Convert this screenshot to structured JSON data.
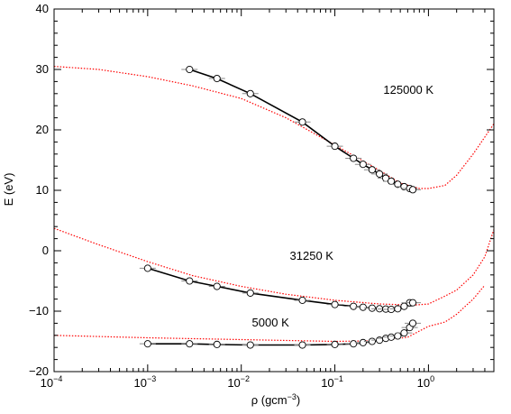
{
  "chart_data": {
    "type": "scatter",
    "xlabel": "ρ (gcm",
    "xlabel_sup": "−3",
    "xlabel_close": ")",
    "ylabel": "E (eV)",
    "x_scale": "log",
    "xlim": [
      0.0001,
      5
    ],
    "ylim": [
      -20,
      40
    ],
    "x_ticks": [
      {
        "value": 0.0001,
        "base": "10",
        "exp": "−4"
      },
      {
        "value": 0.001,
        "base": "10",
        "exp": "−3"
      },
      {
        "value": 0.01,
        "base": "10",
        "exp": "−2"
      },
      {
        "value": 0.1,
        "base": "10",
        "exp": "−1"
      },
      {
        "value": 1,
        "base": "10",
        "exp": "0"
      }
    ],
    "y_ticks": [
      {
        "value": -20,
        "label": "−20"
      },
      {
        "value": -10,
        "label": "−10"
      },
      {
        "value": 0,
        "label": "0"
      },
      {
        "value": 10,
        "label": "10"
      },
      {
        "value": 20,
        "label": "20"
      },
      {
        "value": 30,
        "label": "30"
      },
      {
        "value": 40,
        "label": "40"
      }
    ],
    "grid": false,
    "legend": "none",
    "colors": {
      "simulation": "#000000",
      "model": "#ff0000",
      "axis": "#000000",
      "errorbar": "#888888"
    },
    "annotations": [
      {
        "text": "125000 K",
        "x": 0.33,
        "y": 26.0
      },
      {
        "text": "31250 K",
        "x": 0.033,
        "y": -1.5
      },
      {
        "text": "5000 K",
        "x": 0.013,
        "y": -12.5
      }
    ],
    "simulation_series": [
      {
        "temperature": "125000 K",
        "points": [
          {
            "x": 0.0028,
            "y": 30.0
          },
          {
            "x": 0.0055,
            "y": 28.5
          },
          {
            "x": 0.0125,
            "y": 26.0
          },
          {
            "x": 0.045,
            "y": 21.3
          },
          {
            "x": 0.1,
            "y": 17.3
          },
          {
            "x": 0.158,
            "y": 15.3
          },
          {
            "x": 0.2,
            "y": 14.3
          },
          {
            "x": 0.25,
            "y": 13.4
          },
          {
            "x": 0.3,
            "y": 12.7
          },
          {
            "x": 0.35,
            "y": 12.0
          },
          {
            "x": 0.4,
            "y": 11.5
          },
          {
            "x": 0.47,
            "y": 11.0
          },
          {
            "x": 0.55,
            "y": 10.6
          },
          {
            "x": 0.63,
            "y": 10.3
          },
          {
            "x": 0.68,
            "y": 10.1
          }
        ]
      },
      {
        "temperature": "31250 K",
        "points": [
          {
            "x": 0.001,
            "y": -2.9
          },
          {
            "x": 0.0028,
            "y": -5.0
          },
          {
            "x": 0.0055,
            "y": -5.9
          },
          {
            "x": 0.0125,
            "y": -7.0
          },
          {
            "x": 0.045,
            "y": -8.2
          },
          {
            "x": 0.1,
            "y": -8.9
          },
          {
            "x": 0.158,
            "y": -9.2
          },
          {
            "x": 0.2,
            "y": -9.35
          },
          {
            "x": 0.25,
            "y": -9.5
          },
          {
            "x": 0.3,
            "y": -9.6
          },
          {
            "x": 0.35,
            "y": -9.65
          },
          {
            "x": 0.4,
            "y": -9.7
          },
          {
            "x": 0.47,
            "y": -9.6
          },
          {
            "x": 0.55,
            "y": -9.2
          },
          {
            "x": 0.63,
            "y": -8.6
          },
          {
            "x": 0.68,
            "y": -8.6
          }
        ]
      },
      {
        "temperature": "5000 K",
        "points": [
          {
            "x": 0.001,
            "y": -15.4
          },
          {
            "x": 0.0028,
            "y": -15.4
          },
          {
            "x": 0.0055,
            "y": -15.5
          },
          {
            "x": 0.0125,
            "y": -15.6
          },
          {
            "x": 0.045,
            "y": -15.6
          },
          {
            "x": 0.1,
            "y": -15.5
          },
          {
            "x": 0.158,
            "y": -15.4
          },
          {
            "x": 0.2,
            "y": -15.2
          },
          {
            "x": 0.25,
            "y": -15.0
          },
          {
            "x": 0.3,
            "y": -14.8
          },
          {
            "x": 0.35,
            "y": -14.5
          },
          {
            "x": 0.4,
            "y": -14.3
          },
          {
            "x": 0.47,
            "y": -14.1
          },
          {
            "x": 0.55,
            "y": -13.6
          },
          {
            "x": 0.63,
            "y": -12.7
          },
          {
            "x": 0.68,
            "y": -12.0
          }
        ]
      }
    ],
    "model_curves": [
      {
        "temperature": "125000 K",
        "points": [
          {
            "x": 0.0001,
            "y": 30.5
          },
          {
            "x": 0.0003,
            "y": 30.0
          },
          {
            "x": 0.001,
            "y": 28.8
          },
          {
            "x": 0.003,
            "y": 27.3
          },
          {
            "x": 0.01,
            "y": 25.2
          },
          {
            "x": 0.03,
            "y": 22.0
          },
          {
            "x": 0.1,
            "y": 17.5
          },
          {
            "x": 0.3,
            "y": 13.3
          },
          {
            "x": 0.5,
            "y": 11.2
          },
          {
            "x": 0.8,
            "y": 10.3
          },
          {
            "x": 1.0,
            "y": 10.3
          },
          {
            "x": 1.5,
            "y": 10.8
          },
          {
            "x": 2.0,
            "y": 12.5
          },
          {
            "x": 3.0,
            "y": 16.0
          },
          {
            "x": 5.0,
            "y": 21.0
          }
        ]
      },
      {
        "temperature": "31250 K",
        "points": [
          {
            "x": 0.0001,
            "y": 3.7
          },
          {
            "x": 0.0003,
            "y": 1.0
          },
          {
            "x": 0.001,
            "y": -1.8
          },
          {
            "x": 0.003,
            "y": -4.1
          },
          {
            "x": 0.01,
            "y": -5.9
          },
          {
            "x": 0.03,
            "y": -7.2
          },
          {
            "x": 0.1,
            "y": -8.2
          },
          {
            "x": 0.3,
            "y": -8.8
          },
          {
            "x": 0.7,
            "y": -9.0
          },
          {
            "x": 1.0,
            "y": -8.8
          },
          {
            "x": 1.5,
            "y": -7.5
          },
          {
            "x": 2.0,
            "y": -6.5
          },
          {
            "x": 3.0,
            "y": -4.0
          },
          {
            "x": 4.0,
            "y": -1.0
          },
          {
            "x": 5.0,
            "y": 3.5
          }
        ]
      },
      {
        "temperature": "5000 K",
        "points": [
          {
            "x": 0.0001,
            "y": -14.0
          },
          {
            "x": 0.001,
            "y": -14.4
          },
          {
            "x": 0.01,
            "y": -14.7
          },
          {
            "x": 0.1,
            "y": -15.0
          },
          {
            "x": 0.3,
            "y": -14.9
          },
          {
            "x": 0.6,
            "y": -14.3
          },
          {
            "x": 1.0,
            "y": -12.5
          },
          {
            "x": 1.5,
            "y": -11.8
          },
          {
            "x": 2.0,
            "y": -10.5
          },
          {
            "x": 3.0,
            "y": -8.0
          },
          {
            "x": 4.0,
            "y": -5.7
          }
        ]
      }
    ]
  }
}
